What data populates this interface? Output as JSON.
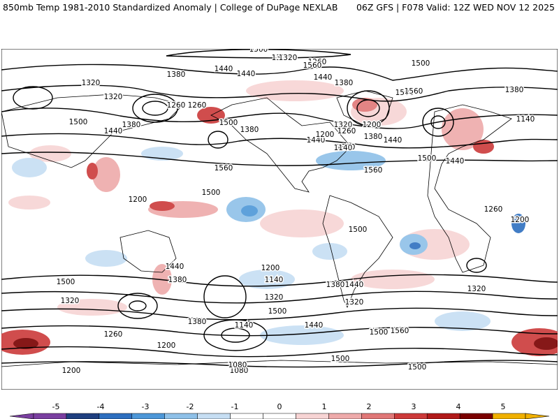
{
  "header": {
    "left": "850mb Temp 1981-2010 Standardized Anomaly | College of DuPage NEXLAB",
    "right": "06Z GFS | F078 Valid: 12Z WED NOV 12 2025"
  },
  "colorbar": {
    "ticks": [
      "-5",
      "-4",
      "-3",
      "-2",
      "-1",
      "0",
      "1",
      "2",
      "3",
      "4",
      "5"
    ],
    "colors": [
      "#7a3fa0",
      "#1f3f7f",
      "#2e6fbf",
      "#4d97d8",
      "#8ec0e8",
      "#c6def3",
      "#ffffff",
      "#ffffff",
      "#f7d4d4",
      "#eeaaaa",
      "#e07777",
      "#cc3a3a",
      "#b01a1a",
      "#7a0000",
      "#f0b000"
    ]
  },
  "contour_labels": [
    "1500",
    "1440",
    "1380",
    "1320",
    "1260",
    "1200",
    "1140",
    "1080",
    "1560",
    "1560",
    "1500",
    "1440",
    "1380",
    "1320",
    "1500",
    "1440",
    "1500",
    "1260",
    "1380",
    "1200",
    "1320",
    "1500",
    "1440",
    "1380",
    "1320",
    "1260",
    "1200",
    "1140",
    "1080",
    "1200",
    "1320",
    "1260",
    "1200",
    "1140",
    "1320",
    "1500",
    "1440",
    "1380",
    "1500",
    "1560",
    "1440",
    "1380",
    "1500",
    "1440",
    "1380",
    "1320",
    "1260",
    "1200",
    "1140",
    "1320",
    "1380",
    "1440",
    "1500",
    "1560",
    "1500",
    "1440",
    "1380",
    "1320",
    "1260",
    "1200",
    "1500",
    "1500",
    "1560",
    "1500",
    "1440",
    "1380"
  ]
}
